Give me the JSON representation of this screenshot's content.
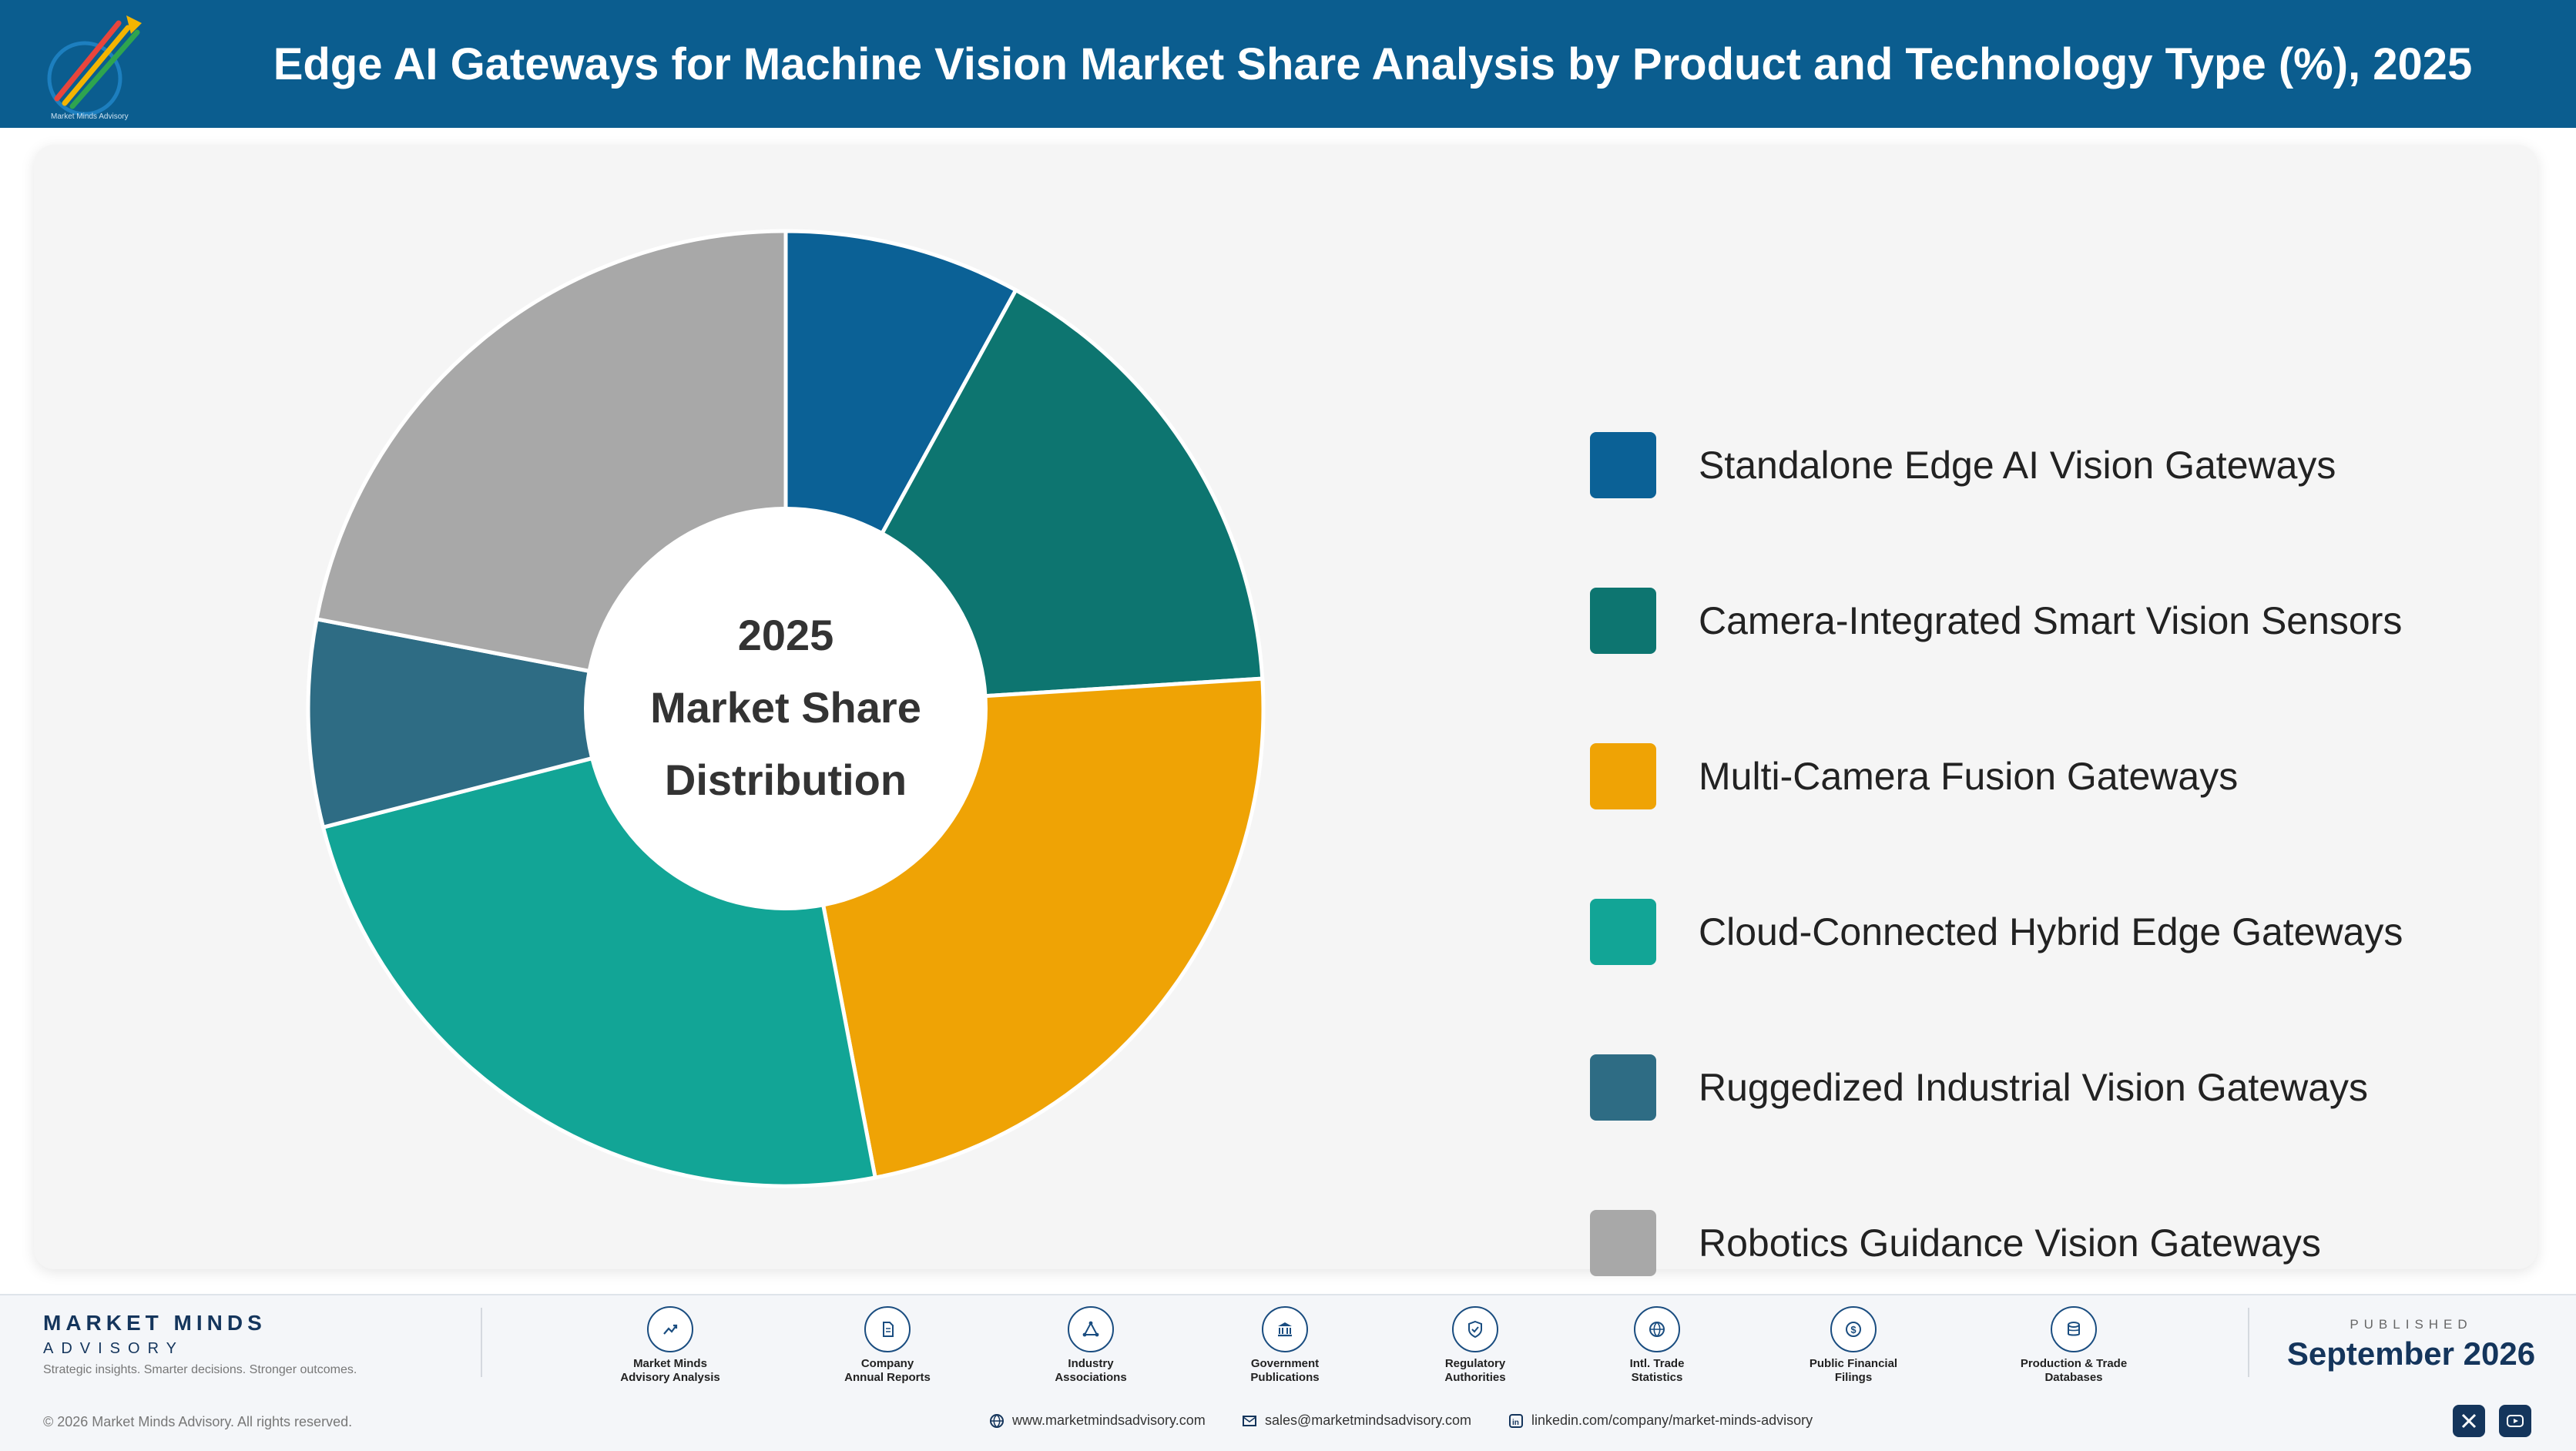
{
  "header": {
    "title": "Edge AI Gateways for Machine Vision Market Share Analysis by Product and Technology Type (%), 2025"
  },
  "chart_data": {
    "type": "pie",
    "variant": "donut",
    "title": "Edge AI Gateways for Machine Vision Market Share Analysis by Product and Technology Type (%), 2025",
    "center_text": [
      "2025",
      "Market Share",
      "Distribution"
    ],
    "categories": [
      "Standalone Edge AI Vision Gateways",
      "Camera-Integrated Smart Vision Sensors",
      "Multi-Camera Fusion Gateways",
      "Cloud-Connected Hybrid Edge Gateways",
      "Ruggedized Industrial Vision Gateways",
      "Robotics Guidance Vision Gateways"
    ],
    "values": [
      8,
      16,
      23,
      24,
      7,
      22
    ],
    "unit": "%",
    "colors": [
      "#0b6196",
      "#0d7570",
      "#efa305",
      "#12a596",
      "#2e6c84",
      "#a8a8a8"
    ],
    "legend_position": "right"
  },
  "footer": {
    "brand": {
      "name": "MARKET MINDS",
      "sub": "ADVISORY",
      "tagline": "Strategic insights. Smarter decisions. Stronger outcomes."
    },
    "sources": [
      {
        "line1": "Market Minds",
        "line2": "Advisory Analysis",
        "icon": "trend-chart-icon"
      },
      {
        "line1": "Company",
        "line2": "Annual Reports",
        "icon": "document-icon"
      },
      {
        "line1": "Industry",
        "line2": "Associations",
        "icon": "network-icon"
      },
      {
        "line1": "Government",
        "line2": "Publications",
        "icon": "government-building-icon"
      },
      {
        "line1": "Regulatory",
        "line2": "Authorities",
        "icon": "shield-check-icon"
      },
      {
        "line1": "Intl. Trade",
        "line2": "Statistics",
        "icon": "globe-icon"
      },
      {
        "line1": "Public Financial",
        "line2": "Filings",
        "icon": "dollar-coin-icon"
      },
      {
        "line1": "Production & Trade",
        "line2": "Databases",
        "icon": "database-icon"
      }
    ],
    "published_label": "PUBLISHED",
    "published_date": "September 2026",
    "copyright": "© 2026 Market Minds Advisory. All rights reserved.",
    "website": "www.marketmindsadvisory.com",
    "email": "sales@marketmindsadvisory.com",
    "linkedin": "linkedin.com/company/market-minds-advisory"
  }
}
